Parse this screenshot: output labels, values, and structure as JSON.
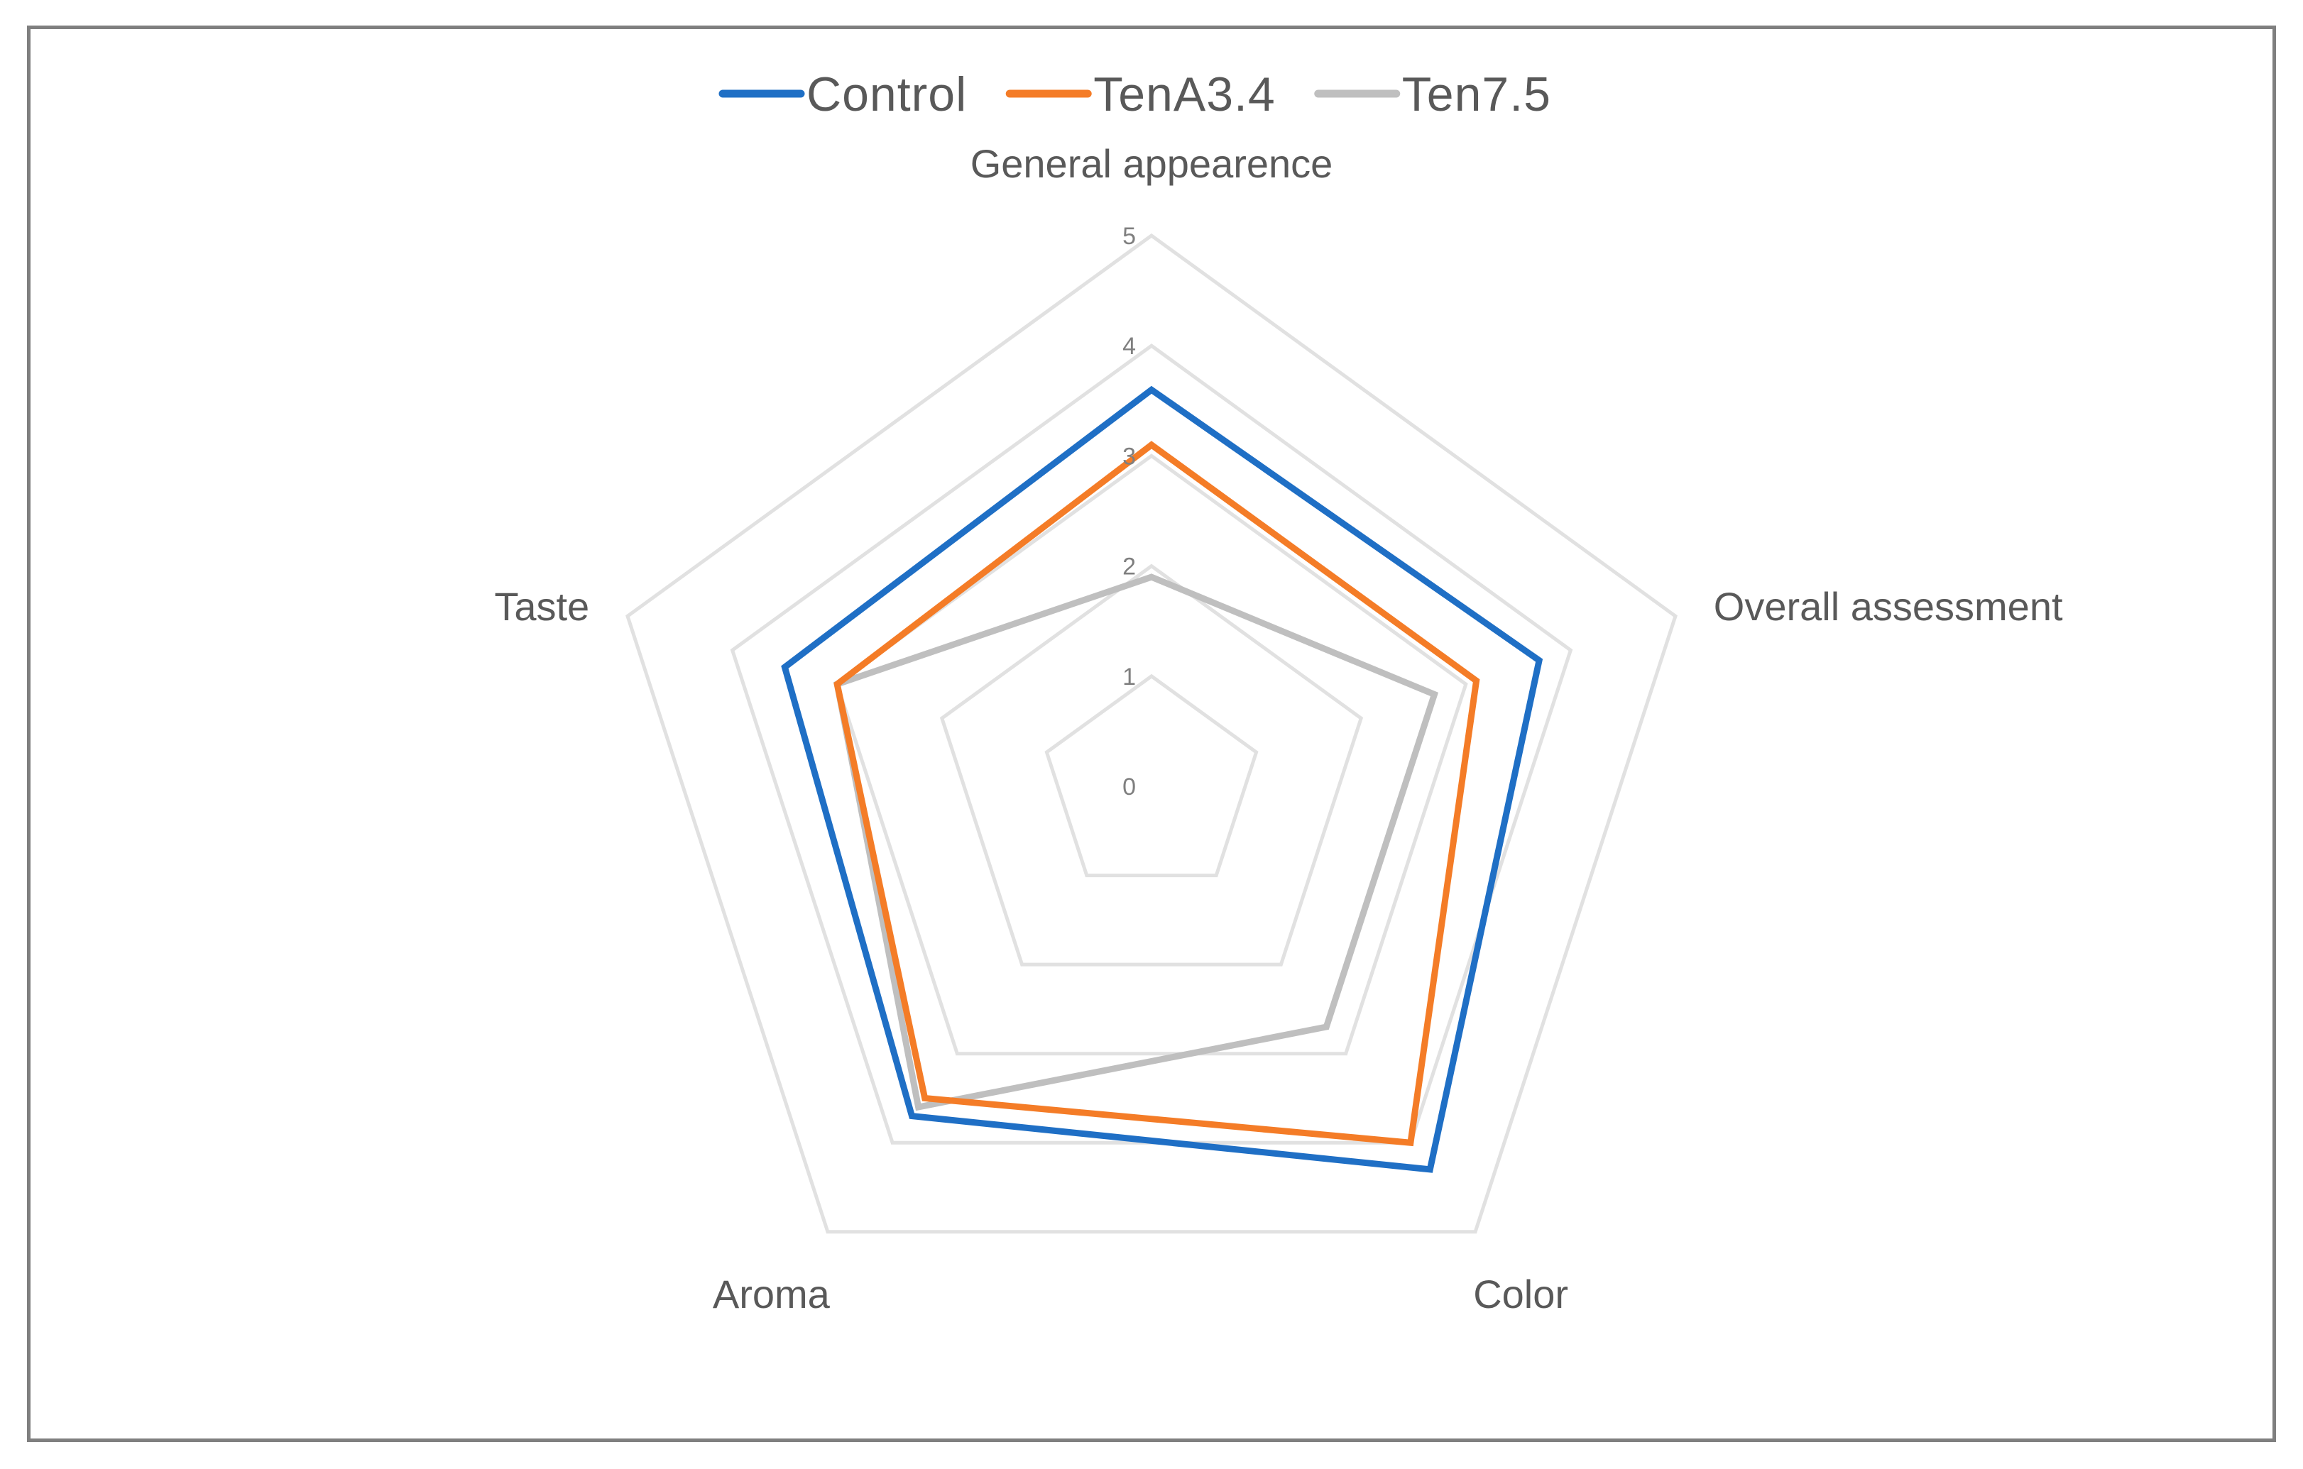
{
  "chart_data": {
    "type": "radar",
    "categories": [
      "General appearence",
      "Overall assessment",
      "Color",
      "Aroma",
      "Taste"
    ],
    "rlim": [
      0,
      5
    ],
    "ticks": [
      "0",
      "1",
      "2",
      "3",
      "4",
      "5"
    ],
    "legend_position": "top",
    "grid": true,
    "series": [
      {
        "name": "Control",
        "color": "#1f6fc5",
        "values": [
          3.6,
          3.7,
          4.3,
          3.7,
          3.5
        ]
      },
      {
        "name": "TenA3.4",
        "color": "#f47c27",
        "values": [
          3.1,
          3.1,
          4.0,
          3.5,
          3.0
        ]
      },
      {
        "name": "Ten7.5",
        "color": "#bfbfbf",
        "values": [
          1.9,
          2.7,
          2.7,
          3.6,
          3.0
        ]
      }
    ],
    "grid_color": "#e1e1e1"
  }
}
